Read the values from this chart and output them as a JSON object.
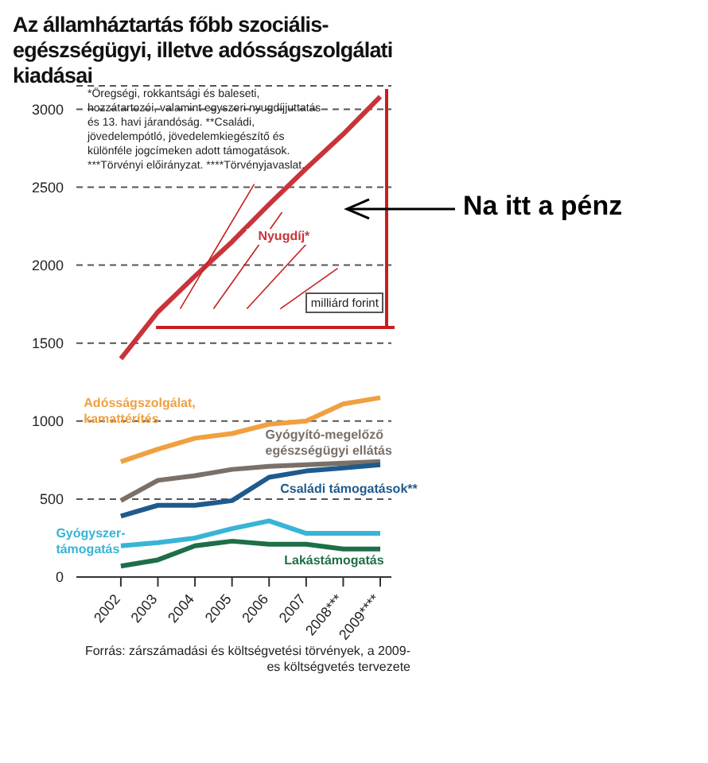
{
  "chart_data": {
    "type": "line",
    "title": "Az államháztartás főbb szociális-egészségügyi, illetve adósságszolgálati kiadásai",
    "categories": [
      "2002",
      "2003",
      "2004",
      "2005",
      "2006",
      "2007",
      "2008***",
      "2009****"
    ],
    "series": [
      {
        "name": "Nyugdíj*",
        "color": "#c8343a",
        "values": [
          1400,
          1700,
          1930,
          2150,
          2390,
          2620,
          2840,
          3080
        ]
      },
      {
        "name": "Adósságszolgálat, kamattérítés",
        "color": "#f0a040",
        "values": [
          740,
          820,
          890,
          920,
          980,
          1000,
          1110,
          1150
        ]
      },
      {
        "name": "Gyógyító-megelőző egészségügyi ellátás",
        "color": "#7a7068",
        "values": [
          490,
          620,
          650,
          690,
          710,
          720,
          730,
          740
        ]
      },
      {
        "name": "Családi támogatások**",
        "color": "#1f5a8c",
        "values": [
          390,
          460,
          460,
          490,
          640,
          680,
          700,
          720
        ]
      },
      {
        "name": "Gyógyszer-támogatás",
        "color": "#38b4d6",
        "values": [
          200,
          220,
          250,
          310,
          360,
          280,
          280,
          280
        ]
      },
      {
        "name": "Lakástámogatás",
        "color": "#1e6e48",
        "values": [
          70,
          110,
          200,
          230,
          210,
          210,
          180,
          180
        ]
      }
    ],
    "ylim": [
      0,
      3150
    ],
    "yticks": [
      0,
      500,
      1000,
      1500,
      2000,
      2500,
      3000
    ],
    "grid": "y",
    "marker": "none",
    "line_style": "solid",
    "annotations": [
      "*Öregségi, rokkantsági és baleseti, hozzátartozói, valamint egyszeri nyugdíjjuttatás és 13. havi járandóság. **Családi, jövedelempótló, jövedelemkiegészítő és különféle jogcímeken adott támogatások. ***Törvényi előirányzat. ****Törvényjavaslat.",
      "milliárd forint",
      "Forrás: zárszámadási és költségvetési törvények, a 2009-es költségvetés tervezete",
      "Na itt a pénz"
    ]
  }
}
